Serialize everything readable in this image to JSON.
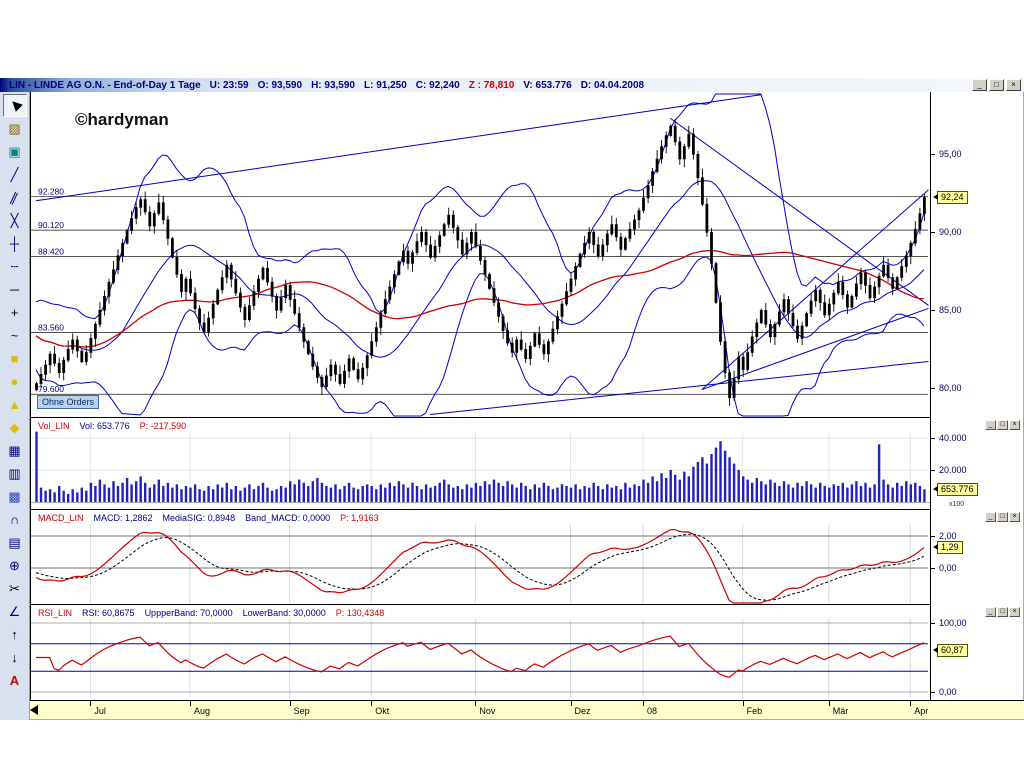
{
  "window": {
    "title_segments": [
      {
        "text": "LIN - LINDE AG O.N. - End-of-Day 1 Tage",
        "color": "#000080"
      },
      {
        "text": "U: 23:59",
        "color": "#000080"
      },
      {
        "text": "O: 93,590",
        "color": "#000080"
      },
      {
        "text": "H: 93,590",
        "color": "#000080"
      },
      {
        "text": "L: 91,250",
        "color": "#000080"
      },
      {
        "text": "C: 92,240",
        "color": "#000080"
      },
      {
        "text": "Z : 78,810",
        "color": "#cc0000"
      },
      {
        "text": "V: 653.776",
        "color": "#000080"
      },
      {
        "text": "D: 04.04.2008",
        "color": "#000080"
      }
    ],
    "buttons": [
      {
        "name": "minimize",
        "glyph": "_"
      },
      {
        "name": "maximize",
        "glyph": "□"
      },
      {
        "name": "close",
        "glyph": "×"
      }
    ]
  },
  "watermark": "©hardyman",
  "toolbar": {
    "tools": [
      {
        "name": "cursor",
        "glyph": "▶",
        "color": "#000000",
        "rotate": -135,
        "selected": true
      },
      {
        "name": "chart-type",
        "glyph": "▨",
        "color": "#886600"
      },
      {
        "name": "indicator-panel",
        "glyph": "▣",
        "color": "#008080"
      },
      {
        "name": "trend-line",
        "glyph": "╱",
        "color": "#000080"
      },
      {
        "name": "parallel-lines",
        "glyph": "∥",
        "color": "#000080",
        "rotate": 25
      },
      {
        "name": "cross-lines",
        "glyph": "╳",
        "color": "#000080"
      },
      {
        "name": "crosshair-lines",
        "glyph": "┼",
        "color": "#000080"
      },
      {
        "name": "dashed-line",
        "glyph": "┄",
        "color": "#000080"
      },
      {
        "name": "horizontal-line",
        "glyph": "─",
        "color": "#000000"
      },
      {
        "name": "plus-marker",
        "glyph": "+",
        "color": "#000000"
      },
      {
        "name": "freehand-curve",
        "glyph": "~",
        "color": "#000080"
      },
      {
        "name": "rectangle",
        "glyph": "■",
        "color": "#d8c300"
      },
      {
        "name": "ellipse",
        "glyph": "●",
        "color": "#d8c300"
      },
      {
        "name": "triangle",
        "glyph": "▲",
        "color": "#d8c300"
      },
      {
        "name": "diamond",
        "glyph": "◆",
        "color": "#d8c300"
      },
      {
        "name": "grid",
        "glyph": "▦",
        "color": "#000080"
      },
      {
        "name": "table",
        "glyph": "▥",
        "color": "#000080"
      },
      {
        "name": "pattern",
        "glyph": "▩",
        "color": "#3344bb"
      },
      {
        "name": "arc",
        "glyph": "∩",
        "color": "#000080"
      },
      {
        "name": "list",
        "glyph": "▤",
        "color": "#000080"
      },
      {
        "name": "move-all",
        "glyph": "⊕",
        "color": "#000080"
      },
      {
        "name": "cut",
        "glyph": "✂",
        "color": "#000000"
      },
      {
        "name": "angle",
        "glyph": "∠",
        "color": "#000080"
      },
      {
        "name": "arrow-up",
        "glyph": "↑",
        "color": "#000000"
      },
      {
        "name": "arrow-down",
        "glyph": "↓",
        "color": "#000000"
      },
      {
        "name": "text-tool",
        "glyph": "A",
        "color": "#cc0000",
        "bold": true
      }
    ]
  },
  "chart_data": {
    "type": "candlestick",
    "title": "LIN - LINDE AG O.N. End-of-Day 1 Tage",
    "warmup_closes": [
      84.5,
      84.1,
      83.8,
      84.3,
      83.9,
      83.5,
      83.2,
      82.8,
      83.4,
      83.0
    ],
    "closes": [
      80.3,
      80.9,
      81.5,
      82.2,
      81.6,
      81.0,
      81.8,
      82.5,
      83.1,
      82.4,
      81.7,
      82.3,
      83.2,
      84.1,
      85.0,
      85.9,
      86.8,
      87.6,
      88.5,
      89.3,
      90.1,
      90.9,
      91.6,
      92.1,
      91.3,
      90.4,
      91.2,
      91.9,
      90.8,
      89.6,
      88.4,
      87.3,
      86.2,
      87.0,
      86.1,
      85.1,
      84.2,
      83.6,
      84.5,
      85.4,
      86.3,
      87.1,
      87.9,
      87.0,
      86.1,
      85.2,
      84.4,
      85.3,
      86.2,
      87.0,
      87.7,
      86.8,
      85.9,
      85.0,
      85.8,
      86.6,
      85.7,
      84.8,
      83.9,
      83.0,
      82.2,
      81.4,
      80.7,
      80.1,
      80.8,
      81.5,
      80.9,
      80.3,
      81.1,
      81.9,
      81.2,
      80.6,
      81.3,
      82.1,
      83.0,
      83.9,
      84.8,
      85.7,
      86.5,
      87.3,
      88.1,
      88.8,
      88.0,
      88.7,
      89.4,
      90.0,
      89.2,
      88.4,
      89.1,
      89.8,
      90.5,
      91.1,
      90.3,
      89.5,
      88.6,
      89.3,
      90.0,
      89.1,
      88.2,
      87.3,
      86.4,
      85.5,
      84.6,
      83.7,
      82.9,
      82.3,
      83.1,
      82.5,
      81.9,
      82.7,
      83.5,
      82.8,
      82.2,
      83.0,
      83.8,
      84.6,
      85.4,
      86.2,
      87.0,
      87.8,
      88.6,
      89.3,
      90.0,
      89.2,
      88.5,
      89.2,
      89.9,
      90.5,
      89.7,
      88.9,
      89.6,
      90.2,
      90.8,
      91.4,
      92.2,
      93.0,
      93.9,
      94.7,
      95.5,
      96.2,
      96.8,
      95.8,
      94.7,
      95.5,
      96.3,
      95.0,
      93.5,
      91.8,
      90.0,
      88.0,
      85.5,
      83.0,
      81.0,
      79.4,
      80.6,
      82.0,
      81.2,
      82.3,
      83.3,
      84.2,
      85.0,
      84.1,
      83.3,
      84.1,
      84.9,
      85.7,
      84.8,
      84.0,
      83.2,
      84.0,
      84.8,
      85.6,
      86.3,
      85.5,
      84.7,
      85.4,
      86.1,
      86.8,
      86.0,
      85.2,
      85.9,
      86.7,
      87.4,
      86.6,
      85.8,
      86.5,
      87.2,
      87.9,
      87.1,
      86.4,
      87.1,
      87.8,
      88.5,
      89.3,
      90.2,
      91.2,
      92.24
    ],
    "volumes": [
      44,
      9,
      7,
      8,
      6,
      10,
      7,
      5,
      8,
      6,
      9,
      7,
      12,
      10,
      14,
      11,
      9,
      13,
      10,
      12,
      15,
      11,
      13,
      16,
      12,
      9,
      11,
      14,
      10,
      12,
      9,
      11,
      8,
      10,
      9,
      11,
      8,
      7,
      10,
      8,
      11,
      9,
      12,
      8,
      10,
      7,
      9,
      11,
      8,
      10,
      12,
      9,
      7,
      8,
      10,
      9,
      13,
      11,
      14,
      12,
      10,
      13,
      15,
      12,
      10,
      9,
      11,
      8,
      10,
      12,
      9,
      8,
      10,
      11,
      10,
      8,
      11,
      9,
      12,
      10,
      13,
      11,
      9,
      12,
      10,
      8,
      11,
      9,
      10,
      12,
      14,
      11,
      9,
      10,
      8,
      11,
      9,
      12,
      10,
      13,
      11,
      14,
      12,
      10,
      13,
      11,
      9,
      12,
      10,
      8,
      11,
      9,
      12,
      10,
      8,
      9,
      11,
      10,
      9,
      11,
      8,
      10,
      9,
      12,
      10,
      8,
      11,
      9,
      10,
      8,
      12,
      9,
      11,
      10,
      14,
      12,
      16,
      13,
      18,
      15,
      20,
      17,
      14,
      19,
      16,
      22,
      25,
      28,
      24,
      30,
      34,
      38,
      32,
      28,
      24,
      20,
      16,
      14,
      12,
      15,
      13,
      11,
      14,
      12,
      10,
      13,
      11,
      9,
      12,
      10,
      13,
      11,
      9,
      12,
      10,
      9,
      11,
      10,
      12,
      9,
      11,
      13,
      10,
      12,
      9,
      11,
      36,
      14,
      11,
      9,
      12,
      10,
      13,
      11,
      12,
      10,
      8
    ],
    "month_ticks": [
      {
        "index": 12,
        "label": "Jul"
      },
      {
        "index": 34,
        "label": "Aug"
      },
      {
        "index": 56,
        "label": "Sep"
      },
      {
        "index": 74,
        "label": "Okt"
      },
      {
        "index": 97,
        "label": "Nov"
      },
      {
        "index": 118,
        "label": "Dez"
      },
      {
        "index": 134,
        "label": "08"
      },
      {
        "index": 156,
        "label": "Feb"
      },
      {
        "index": 175,
        "label": "Mär"
      },
      {
        "index": 193,
        "label": "Apr"
      }
    ],
    "levels": [
      {
        "label": "92.280",
        "value": 92.28
      },
      {
        "label": "90.120",
        "value": 90.12
      },
      {
        "label": "88.420",
        "value": 88.42
      },
      {
        "label": "83.560",
        "value": 83.56
      },
      {
        "label": "79.600",
        "value": 79.6
      }
    ],
    "trendlines": [
      [
        [
          0,
          92.0
        ],
        [
          160,
          98.8
        ]
      ],
      [
        [
          140,
          97.3
        ],
        [
          197,
          85.3
        ]
      ],
      [
        [
          147,
          79.9
        ],
        [
          197,
          92.7
        ]
      ],
      [
        [
          87,
          78.3
        ],
        [
          197,
          81.7
        ]
      ],
      [
        [
          147,
          79.9
        ],
        [
          197,
          85.1
        ]
      ]
    ],
    "price_axis": {
      "ticks": [
        {
          "label": "95,00",
          "value": 95
        },
        {
          "label": "90,00",
          "value": 90
        },
        {
          "label": "85,00",
          "value": 85
        },
        {
          "label": "80,00",
          "value": 80
        }
      ],
      "tag": {
        "label": "92,24",
        "value": 92.24
      }
    },
    "indicators": {
      "sma_fast": 20,
      "sma_slow": 50,
      "boll_mult": 2,
      "macd": [
        12,
        26,
        9
      ],
      "rsi": 14
    },
    "colors": {
      "candle": "#000000",
      "ma_fast": "#0000cc",
      "ma_slow": "#cc0000",
      "band": "#0000cc",
      "trend": "#0000bb",
      "volume": "#2222bb",
      "macd_line": "#cc0000",
      "signal_line": "#000000",
      "rsi_line": "#cc0000",
      "rsi_band": "#0000bb",
      "level": "#1a1a1a",
      "level_label": "#000080"
    }
  },
  "panels": {
    "price": {
      "orders_label": "Ohne Orders"
    },
    "volume": {
      "header": [
        {
          "text": "Vol_LIN",
          "color": "#cc0000"
        },
        {
          "text": "Vol: 653.776",
          "color": "#000080"
        },
        {
          "text": "P: -217.590",
          "color": "#cc0000"
        }
      ],
      "axis": {
        "ticks": [
          {
            "label": "40.000",
            "value": 40
          },
          {
            "label": "20.000",
            "value": 20
          }
        ],
        "tag": "653.776",
        "scale_note": "x100"
      }
    },
    "macd": {
      "header": [
        {
          "text": "MACD_LIN",
          "color": "#cc0000"
        },
        {
          "text": "MACD: 1,2862",
          "color": "#000080"
        },
        {
          "text": "MediaSIG: 0,8948",
          "color": "#000080"
        },
        {
          "text": "Band_MACD: 0,0000",
          "color": "#000080"
        },
        {
          "text": "P: 1,9163",
          "color": "#cc0000"
        }
      ],
      "axis": {
        "ticks": [
          {
            "label": "2,00",
            "value": 2
          },
          {
            "label": "0,00",
            "value": 0
          }
        ],
        "tag": "1,29",
        "tag_value": 1.29
      }
    },
    "rsi": {
      "header": [
        {
          "text": "RSI_LIN",
          "color": "#cc0000"
        },
        {
          "text": "RSI: 60,8675",
          "color": "#000080"
        },
        {
          "text": "UppperBand: 70,0000",
          "color": "#000080"
        },
        {
          "text": "LowerBand: 30,0000",
          "color": "#000080"
        },
        {
          "text": "P: 130,4348",
          "color": "#cc0000"
        }
      ],
      "axis": {
        "ticks": [
          {
            "label": "100,00",
            "value": 100
          },
          {
            "label": "0,00",
            "value": 0
          }
        ],
        "tag": "60,87",
        "tag_value": 60.87
      },
      "bands": [
        70,
        30
      ]
    }
  }
}
